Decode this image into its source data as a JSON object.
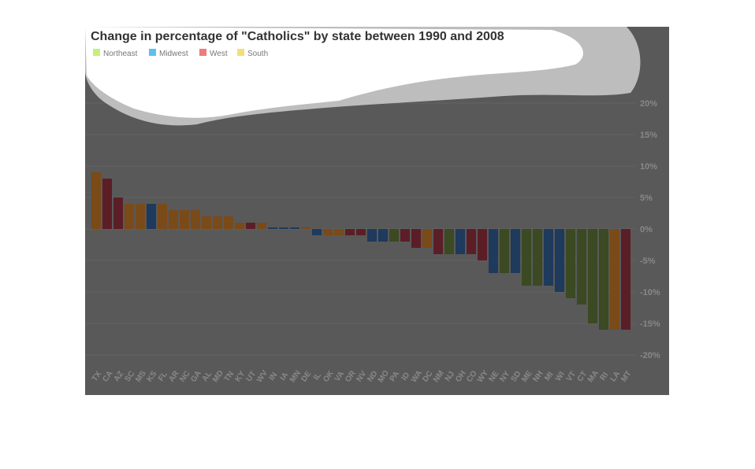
{
  "chart_data": {
    "type": "bar",
    "title": "Change in percentage of \"Catholics\" by state between 1990 and 2008",
    "xlabel": "",
    "ylabel": "",
    "ylim": [
      -23,
      23
    ],
    "yticks": [
      20,
      15,
      10,
      5,
      0,
      -5,
      -10,
      -15,
      -20
    ],
    "ytick_labels": [
      "20%",
      "15%",
      "10%",
      "5%",
      "0%",
      "-5%",
      "-10%",
      "-15%",
      "-20%"
    ],
    "grid": true,
    "legend_position": "top-left",
    "legend": [
      {
        "name": "Northeast",
        "color": "#c6f07a",
        "bar_color": "#3b4a22"
      },
      {
        "name": "Midwest",
        "color": "#5bc0f0",
        "bar_color": "#1e3a5c"
      },
      {
        "name": "West",
        "color": "#f07a7a",
        "bar_color": "#5c1e26"
      },
      {
        "name": "South",
        "color": "#f0e07a",
        "bar_color": "#7a4a18"
      }
    ],
    "categories": [
      "TX",
      "CA",
      "AZ",
      "SC",
      "MS",
      "KS",
      "FL",
      "AR",
      "NC",
      "GA",
      "AL",
      "MD",
      "TN",
      "KY",
      "UT",
      "WV",
      "IN",
      "IA",
      "MN",
      "DE",
      "IL",
      "OK",
      "VA",
      "OR",
      "NV",
      "ND",
      "MO",
      "PA",
      "ID",
      "WA",
      "DC",
      "NM",
      "NJ",
      "OH",
      "CO",
      "WY",
      "NE",
      "NY",
      "SD",
      "ME",
      "NH",
      "MI",
      "WI",
      "VT",
      "CT",
      "MA",
      "RI",
      "LA",
      "MT"
    ],
    "regions": [
      "South",
      "West",
      "West",
      "South",
      "South",
      "Midwest",
      "South",
      "South",
      "South",
      "South",
      "South",
      "South",
      "South",
      "South",
      "West",
      "South",
      "Midwest",
      "Midwest",
      "Midwest",
      "South",
      "Midwest",
      "South",
      "South",
      "West",
      "West",
      "Midwest",
      "Midwest",
      "Northeast",
      "West",
      "West",
      "South",
      "West",
      "Northeast",
      "Midwest",
      "West",
      "West",
      "Midwest",
      "Northeast",
      "Midwest",
      "Northeast",
      "Northeast",
      "Midwest",
      "Midwest",
      "Northeast",
      "Northeast",
      "Northeast",
      "Northeast",
      "South",
      "West"
    ],
    "values": [
      9,
      8,
      5,
      4,
      4,
      4,
      4,
      3,
      3,
      3,
      2,
      2,
      2,
      1,
      1,
      1,
      0.2,
      0.2,
      0.2,
      0.2,
      -1,
      -1,
      -1,
      -1,
      -1,
      -2,
      -2,
      -2,
      -2,
      -3,
      -3,
      -4,
      -4,
      -4,
      -4,
      -5,
      -7,
      -7,
      -7,
      -9,
      -9,
      -9,
      -10,
      -11,
      -12,
      -15,
      -16,
      -16,
      -16
    ]
  }
}
